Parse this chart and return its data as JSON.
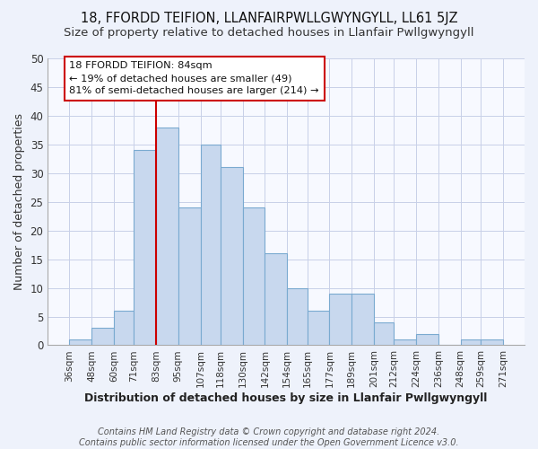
{
  "title": "18, FFORDD TEIFION, LLANFAIRPWLLGWYNGYLL, LL61 5JZ",
  "subtitle": "Size of property relative to detached houses in Llanfair Pwllgwyngyll",
  "xlabel": "Distribution of detached houses by size in Llanfair Pwllgwyngyll",
  "ylabel_text": "Number of detached properties",
  "bin_edges": [
    36,
    48,
    60,
    71,
    83,
    95,
    107,
    118,
    130,
    142,
    154,
    165,
    177,
    189,
    201,
    212,
    224,
    236,
    248,
    259,
    271
  ],
  "bar_heights": [
    1,
    3,
    6,
    34,
    38,
    24,
    35,
    31,
    24,
    16,
    10,
    6,
    9,
    9,
    4,
    1,
    2,
    0,
    1,
    1
  ],
  "bar_color": "#c8d8ee",
  "bar_edgecolor": "#7aaad0",
  "vline_x": 83,
  "vline_color": "#cc0000",
  "annotation_text": "18 FFORDD TEIFION: 84sqm\n← 19% of detached houses are smaller (49)\n81% of semi-detached houses are larger (214) →",
  "annotation_box_color": "white",
  "annotation_box_edgecolor": "#cc0000",
  "ylim": [
    0,
    50
  ],
  "yticks": [
    0,
    5,
    10,
    15,
    20,
    25,
    30,
    35,
    40,
    45,
    50
  ],
  "tick_labels": [
    "36sqm",
    "48sqm",
    "60sqm",
    "71sqm",
    "83sqm",
    "95sqm",
    "107sqm",
    "118sqm",
    "130sqm",
    "142sqm",
    "154sqm",
    "165sqm",
    "177sqm",
    "189sqm",
    "201sqm",
    "212sqm",
    "224sqm",
    "236sqm",
    "248sqm",
    "259sqm",
    "271sqm"
  ],
  "footer": "Contains HM Land Registry data © Crown copyright and database right 2024.\nContains public sector information licensed under the Open Government Licence v3.0.",
  "bg_color": "#eef2fb",
  "plot_bg_color": "#f7f9ff",
  "title_fontsize": 10.5,
  "subtitle_fontsize": 9.5,
  "xlabel_fontsize": 9,
  "ylabel_fontsize": 9,
  "tick_fontsize": 7.5,
  "footer_fontsize": 7
}
